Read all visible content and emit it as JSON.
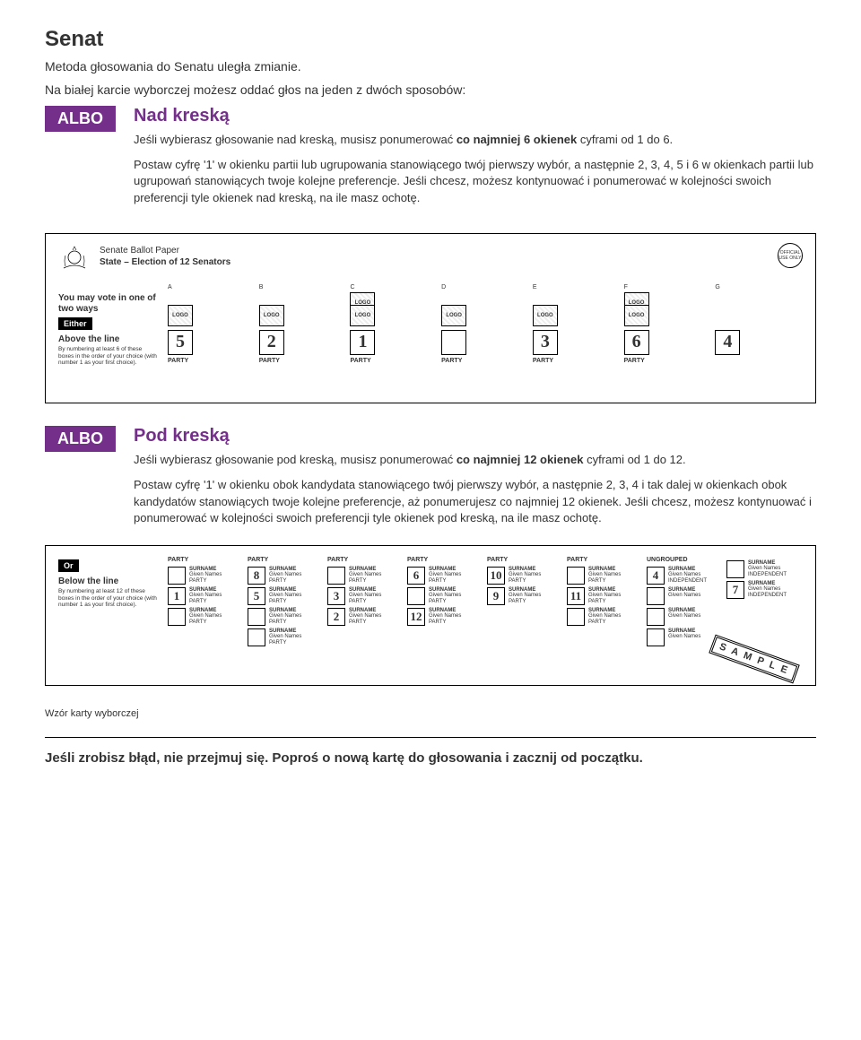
{
  "header": {
    "title": "Senat",
    "subtitle": "Metoda głosowania do Senatu uległa zmianie.",
    "intro": "Na białej karcie wyborczej możesz oddać głos na jeden z dwóch sposobów:"
  },
  "above": {
    "badge": "ALBO",
    "heading": "Nad kreską",
    "p1a": "Jeśli wybierasz głosowanie nad kreską, musisz ponumerować ",
    "p1b": "co najmniej 6 okienek",
    "p1c": " cyframi od 1 do 6.",
    "p2": "Postaw cyfrę '1' w okienku partii lub ugrupowania stanowiącego twój pierwszy wybór, a następnie 2, 3, 4, 5 i 6 w okienkach partii lub ugrupowań stanowiących twoje kolejne preferencje. Jeśli chcesz, możesz kontynuować i ponumerować w kolejności swoich preferencji tyle okienek nad kreską, na ile masz ochotę."
  },
  "ballot": {
    "t1": "Senate Ballot Paper",
    "t2": "State – Election of 12 Senators",
    "official": "OFFICIAL USE ONLY",
    "you_may": "You may vote in one of two ways",
    "either": "Either",
    "above_h": "Above the line",
    "above_tiny": "By numbering at least 6 of these boxes in the order of your choice (with number 1 as your first choice).",
    "columns": [
      {
        "letter": "A",
        "logos": 1,
        "number": "5",
        "party": "PARTY"
      },
      {
        "letter": "B",
        "logos": 1,
        "number": "2",
        "party": "PARTY"
      },
      {
        "letter": "C",
        "logos": 2,
        "number": "1",
        "party": "PARTY"
      },
      {
        "letter": "D",
        "logos": 1,
        "number": "",
        "party": "PARTY"
      },
      {
        "letter": "E",
        "logos": 1,
        "number": "3",
        "party": "PARTY"
      },
      {
        "letter": "F",
        "logos": 2,
        "number": "6",
        "party": "PARTY"
      },
      {
        "letter": "G",
        "logos": 0,
        "number": "4",
        "party": ""
      }
    ],
    "or": "Or",
    "below_h": "Below the line",
    "below_tiny": "By numbering at least 12 of these boxes in the order of your choice (with number 1 as your first choice).",
    "below_columns": [
      {
        "header": "PARTY",
        "cands": [
          {
            "n": "",
            "p": "PARTY"
          },
          {
            "n": "1",
            "p": "PARTY"
          },
          {
            "n": "",
            "p": "PARTY"
          }
        ]
      },
      {
        "header": "PARTY",
        "cands": [
          {
            "n": "8",
            "p": "PARTY"
          },
          {
            "n": "5",
            "p": "PARTY"
          },
          {
            "n": "",
            "p": "PARTY"
          },
          {
            "n": "",
            "p": "PARTY"
          }
        ]
      },
      {
        "header": "PARTY",
        "cands": [
          {
            "n": "",
            "p": "PARTY"
          },
          {
            "n": "3",
            "p": "PARTY"
          },
          {
            "n": "2",
            "p": "PARTY"
          }
        ]
      },
      {
        "header": "PARTY",
        "cands": [
          {
            "n": "6",
            "p": "PARTY"
          },
          {
            "n": "",
            "p": "PARTY"
          },
          {
            "n": "12",
            "p": "PARTY"
          }
        ]
      },
      {
        "header": "PARTY",
        "cands": [
          {
            "n": "10",
            "p": "PARTY"
          },
          {
            "n": "9",
            "p": "PARTY"
          }
        ]
      },
      {
        "header": "PARTY",
        "cands": [
          {
            "n": "",
            "p": "PARTY"
          },
          {
            "n": "11",
            "p": "PARTY"
          },
          {
            "n": "",
            "p": "PARTY"
          }
        ]
      },
      {
        "header": "UNGROUPED",
        "cands": [
          {
            "n": "4",
            "p": "INDEPENDENT"
          },
          {
            "n": "",
            "p": ""
          },
          {
            "n": "",
            "p": ""
          },
          {
            "n": "",
            "p": ""
          }
        ]
      },
      {
        "header": "",
        "cands": [
          {
            "n": "",
            "p": "INDEPENDENT"
          },
          {
            "n": "7",
            "p": "INDEPENDENT"
          }
        ]
      }
    ],
    "surname": "SURNAME",
    "given": "Given Names",
    "logo_label": "LOGO",
    "sample": "S A M P L E"
  },
  "below": {
    "badge": "ALBO",
    "heading": "Pod kreską",
    "p1a": "Jeśli wybierasz głosowanie pod kreską, musisz ponumerować ",
    "p1b": "co najmniej 12 okienek",
    "p1c": " cyframi od 1 do 12.",
    "p2": "Postaw cyfrę '1' w okienku obok kandydata stanowiącego twój pierwszy wybór, a następnie 2, 3, 4 i tak dalej w okienkach obok kandydatów stanowiących twoje kolejne preferencje, aż ponumerujesz co najmniej 12 okienek. Jeśli chcesz, możesz kontynuować i ponumerować w kolejności swoich preferencji tyle okienek pod kreską, na ile masz ochotę."
  },
  "footer": {
    "label": "Wzór karty wyborczej",
    "bold": "Jeśli zrobisz błąd, nie przejmuj się. Poproś o nową kartę do głosowania i zacznij od początku."
  },
  "colors": {
    "accent": "#742f8a"
  }
}
